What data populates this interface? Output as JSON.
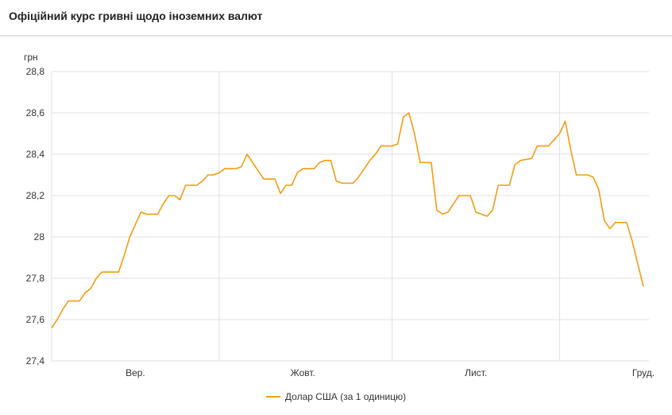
{
  "header": {
    "title": "Офіційний курс гривні щодо іноземних валют"
  },
  "chart_data": {
    "type": "line",
    "title": "",
    "ylabel": "грн",
    "xlabel": "",
    "ylim": [
      27.4,
      28.8
    ],
    "yticks": [
      "27,4",
      "27,6",
      "27,8",
      "28",
      "28,2",
      "28,4",
      "28,6",
      "28,8"
    ],
    "ytick_values": [
      27.4,
      27.6,
      27.8,
      28.0,
      28.2,
      28.4,
      28.6,
      28.8
    ],
    "xlim": [
      "09-01",
      "12-17"
    ],
    "xticks": [
      {
        "label": "Вер.",
        "at": "09-16"
      },
      {
        "label": "Жовт.",
        "at": "10-16"
      },
      {
        "label": "Лист.",
        "at": "11-16"
      },
      {
        "label": "Груд.",
        "at": "12-16"
      }
    ],
    "x_gridlines": [
      "10-01",
      "11-01",
      "12-01"
    ],
    "grid": true,
    "legend_position": "bottom",
    "series": [
      {
        "name": "Долар США (за 1 одиницю)",
        "color": "#f39c12",
        "x": [
          "09-01",
          "09-02",
          "09-03",
          "09-04",
          "09-06",
          "09-07",
          "09-08",
          "09-09",
          "09-10",
          "09-11",
          "09-13",
          "09-14",
          "09-15",
          "09-16",
          "09-17",
          "09-18",
          "09-20",
          "09-21",
          "09-22",
          "09-23",
          "09-24",
          "09-25",
          "09-27",
          "09-28",
          "09-29",
          "09-30",
          "10-01",
          "10-02",
          "10-04",
          "10-05",
          "10-06",
          "10-07",
          "10-08",
          "10-09",
          "10-11",
          "10-12",
          "10-13",
          "10-14",
          "10-15",
          "10-16",
          "10-18",
          "10-19",
          "10-20",
          "10-21",
          "10-22",
          "10-23",
          "10-25",
          "10-26",
          "10-27",
          "10-28",
          "10-29",
          "10-30",
          "11-01",
          "11-02",
          "11-03",
          "11-04",
          "11-05",
          "11-06",
          "11-08",
          "11-09",
          "11-10",
          "11-11",
          "11-12",
          "11-13",
          "11-15",
          "11-16",
          "11-18",
          "11-19",
          "11-20",
          "11-22",
          "11-23",
          "11-24",
          "11-26",
          "11-27",
          "11-29",
          "11-30",
          "12-01",
          "12-02",
          "12-03",
          "12-04",
          "12-06",
          "12-07",
          "12-08",
          "12-09",
          "12-10",
          "12-11",
          "12-13",
          "12-14",
          "12-15",
          "12-16"
        ],
        "values": [
          27.56,
          27.6,
          27.65,
          27.69,
          27.69,
          27.73,
          27.75,
          27.8,
          27.83,
          27.83,
          27.83,
          27.91,
          28.0,
          28.06,
          28.12,
          28.11,
          28.11,
          28.16,
          28.2,
          28.2,
          28.18,
          28.25,
          28.25,
          28.27,
          28.3,
          28.3,
          28.31,
          28.33,
          28.33,
          28.34,
          28.4,
          28.36,
          28.32,
          28.28,
          28.28,
          28.21,
          28.25,
          28.25,
          28.31,
          28.33,
          28.33,
          28.36,
          28.37,
          28.37,
          28.27,
          28.26,
          28.26,
          28.29,
          28.33,
          28.37,
          28.4,
          28.44,
          28.44,
          28.45,
          28.58,
          28.6,
          28.5,
          28.36,
          28.36,
          28.13,
          28.11,
          28.12,
          28.16,
          28.2,
          28.2,
          28.12,
          28.1,
          28.13,
          28.25,
          28.25,
          28.35,
          28.37,
          28.38,
          28.44,
          28.44,
          28.47,
          28.5,
          28.56,
          28.42,
          28.3,
          28.3,
          28.29,
          28.23,
          28.08,
          28.04,
          28.07,
          28.07,
          27.98,
          27.87,
          27.76
        ]
      }
    ]
  }
}
